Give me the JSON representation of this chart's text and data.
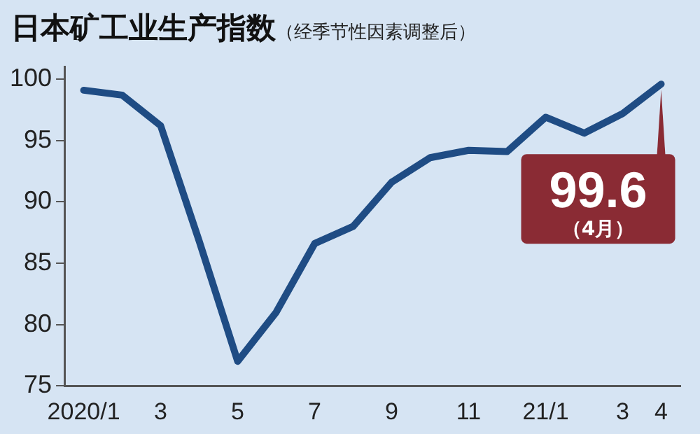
{
  "chart_data": {
    "type": "line",
    "title": "日本矿工业生产指数",
    "subtitle": "（经季节性因素调整后）",
    "categories": [
      "2020/1",
      null,
      "3",
      null,
      "5",
      null,
      "7",
      null,
      "9",
      null,
      "11",
      null,
      "21/1",
      null,
      "3",
      "4"
    ],
    "series": [
      {
        "color": "#1f4c84",
        "values": [
          99.1,
          98.7,
          96.2,
          86.8,
          77.0,
          81.0,
          86.6,
          88.0,
          91.6,
          93.6,
          94.2,
          94.1,
          96.9,
          95.6,
          97.2,
          99.6
        ]
      }
    ],
    "annotations": [
      {
        "text": "99.6",
        "x": "4",
        "y": 99.6
      },
      "（4月）"
    ],
    "ylim": [
      75,
      101
    ],
    "yticks": [
      75,
      80,
      85,
      90,
      95,
      100
    ],
    "grid": false,
    "legend": false,
    "marker": "none",
    "line_style": "solid"
  }
}
